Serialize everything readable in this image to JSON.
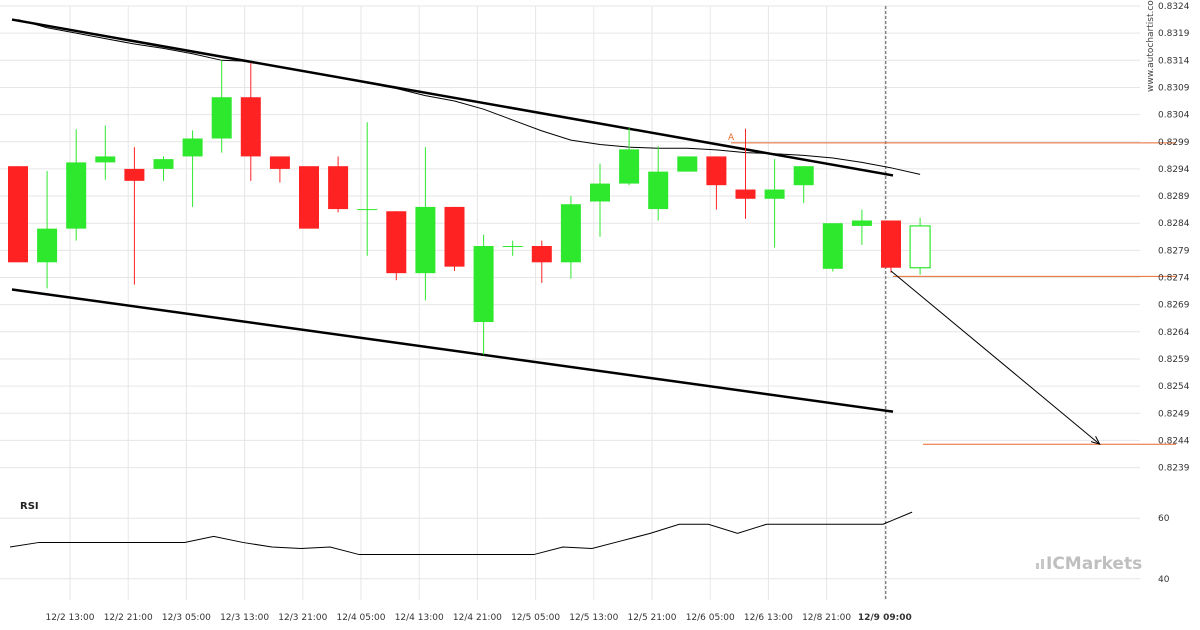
{
  "watermark": "www.autochartist.com",
  "brand": {
    "text": "ICMarkets",
    "color": "#b8b8b8"
  },
  "colors": {
    "bull": "#2ee82e",
    "bear": "#ff2222",
    "channel": "#000000",
    "ma": "#000000",
    "level": "#e8692c",
    "grid": "#e6e6e6"
  },
  "chart_data": {
    "type": "candlestick",
    "title": "",
    "price_axis": {
      "ylim": [
        0.82345,
        0.8324
      ],
      "ticks": [
        "0.8324",
        "0.8319",
        "0.8314",
        "0.8309",
        "0.8304",
        "0.8299",
        "0.8294",
        "0.8289",
        "0.8284",
        "0.8279",
        "0.8274",
        "0.8269",
        "0.8264",
        "0.8259",
        "0.8254",
        "0.8249",
        "0.8244",
        "0.8239"
      ]
    },
    "x_labels": [
      "12/2 13:00",
      "12/2 21:00",
      "12/3 05:00",
      "12/3 13:00",
      "12/3 21:00",
      "12/4 05:00",
      "12/4 13:00",
      "12/4 21:00",
      "12/5 05:00",
      "12/5 13:00",
      "12/5 21:00",
      "12/6 05:00",
      "12/6 13:00",
      "12/8 21:00",
      "12/9 09:00"
    ],
    "current_label": "12/9 09:00",
    "candles": [
      {
        "o": 0.82945,
        "h": 0.82945,
        "l": 0.82768,
        "c": 0.82768
      },
      {
        "o": 0.82768,
        "h": 0.82936,
        "l": 0.8272,
        "c": 0.8283
      },
      {
        "o": 0.8283,
        "h": 0.83013,
        "l": 0.82808,
        "c": 0.82952
      },
      {
        "o": 0.82952,
        "h": 0.8302,
        "l": 0.8292,
        "c": 0.82963
      },
      {
        "o": 0.8294,
        "h": 0.8298,
        "l": 0.82727,
        "c": 0.82918
      },
      {
        "o": 0.8294,
        "h": 0.82963,
        "l": 0.82918,
        "c": 0.82958
      },
      {
        "o": 0.82963,
        "h": 0.83011,
        "l": 0.8287,
        "c": 0.82996
      },
      {
        "o": 0.82996,
        "h": 0.8314,
        "l": 0.8297,
        "c": 0.83072
      },
      {
        "o": 0.83072,
        "h": 0.83135,
        "l": 0.82918,
        "c": 0.82963
      },
      {
        "o": 0.82963,
        "h": 0.82963,
        "l": 0.82915,
        "c": 0.8294
      },
      {
        "o": 0.82945,
        "h": 0.82945,
        "l": 0.8283,
        "c": 0.8283
      },
      {
        "o": 0.82945,
        "h": 0.82963,
        "l": 0.8286,
        "c": 0.82866
      },
      {
        "o": 0.82866,
        "h": 0.83026,
        "l": 0.8278,
        "c": 0.82866
      },
      {
        "o": 0.82862,
        "h": 0.82862,
        "l": 0.82735,
        "c": 0.82748
      },
      {
        "o": 0.82748,
        "h": 0.8298,
        "l": 0.82698,
        "c": 0.8287
      },
      {
        "o": 0.8287,
        "h": 0.8287,
        "l": 0.82752,
        "c": 0.8276
      },
      {
        "o": 0.82658,
        "h": 0.82819,
        "l": 0.82598,
        "c": 0.82798
      },
      {
        "o": 0.82798,
        "h": 0.82808,
        "l": 0.8278,
        "c": 0.82798
      },
      {
        "o": 0.82798,
        "h": 0.82808,
        "l": 0.8273,
        "c": 0.82768
      },
      {
        "o": 0.82768,
        "h": 0.8289,
        "l": 0.82738,
        "c": 0.82875
      },
      {
        "o": 0.8288,
        "h": 0.8295,
        "l": 0.82815,
        "c": 0.82913
      },
      {
        "o": 0.82913,
        "h": 0.83015,
        "l": 0.8291,
        "c": 0.82976
      },
      {
        "o": 0.82866,
        "h": 0.82982,
        "l": 0.82845,
        "c": 0.82935
      },
      {
        "o": 0.82935,
        "h": 0.82963,
        "l": 0.82935,
        "c": 0.82963
      },
      {
        "o": 0.82963,
        "h": 0.82963,
        "l": 0.82865,
        "c": 0.8291
      },
      {
        "o": 0.82902,
        "h": 0.83014,
        "l": 0.82848,
        "c": 0.82885
      },
      {
        "o": 0.82885,
        "h": 0.82958,
        "l": 0.82795,
        "c": 0.82902
      },
      {
        "o": 0.8291,
        "h": 0.82945,
        "l": 0.82877,
        "c": 0.82945
      },
      {
        "o": 0.82756,
        "h": 0.82838,
        "l": 0.82751,
        "c": 0.8284
      },
      {
        "o": 0.82835,
        "h": 0.82865,
        "l": 0.828,
        "c": 0.82845
      },
      {
        "o": 0.82845,
        "h": 0.82845,
        "l": 0.82749,
        "c": 0.82758
      },
      {
        "o": 0.82758,
        "h": 0.8285,
        "l": 0.82745,
        "c": 0.82835
      }
    ],
    "channel_upper": [
      [
        0,
        0.83215
      ],
      [
        30,
        0.82928
      ]
    ],
    "channel_lower": [
      [
        0,
        0.82718
      ],
      [
        30,
        0.82493
      ]
    ],
    "moving_average": [
      0.83215,
      0.832,
      0.8319,
      0.8318,
      0.8317,
      0.83162,
      0.83152,
      0.8314,
      0.83138,
      0.83128,
      0.83118,
      0.83108,
      0.83098,
      0.83088,
      0.83075,
      0.83065,
      0.8305,
      0.8303,
      0.8301,
      0.82993,
      0.82985,
      0.8298,
      0.82978,
      0.82978,
      0.82975,
      0.8297,
      0.82968,
      0.82965,
      0.8296,
      0.82952,
      0.82942,
      0.8293
    ],
    "resistance_level": {
      "value": 0.82988,
      "from_index": 24.5,
      "label": "A"
    },
    "support_level": {
      "value": 0.82742
    },
    "target_level": {
      "value": 0.82433,
      "from_index": 31.1
    },
    "forecast_arrow": {
      "from": [
        30,
        0.82752
      ],
      "to": [
        37,
        0.82433
      ]
    },
    "rsi": {
      "label": "RSI",
      "ticks": [
        60,
        40
      ],
      "ylim": [
        33,
        67
      ],
      "values": [
        50.5,
        52,
        52,
        52,
        52,
        52,
        52,
        54,
        52,
        50.5,
        50,
        50.5,
        48,
        48,
        48,
        48,
        48,
        48,
        48,
        50.5,
        50,
        52.5,
        55,
        58,
        58,
        55,
        58,
        58,
        58,
        58,
        58,
        62
      ]
    }
  }
}
